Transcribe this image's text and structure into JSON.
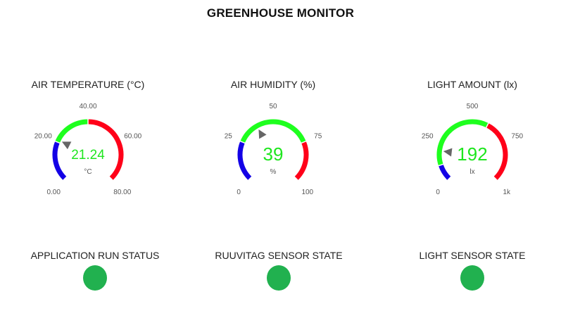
{
  "page": {
    "title": "GREENHOUSE MONITOR"
  },
  "colors": {
    "low": "#1300e6",
    "ok": "#1eff1e",
    "high": "#ff0019",
    "track": "#e6e6e6",
    "value": "#1ee61e",
    "needle": "#666666",
    "status_on": "#21b14f"
  },
  "gauges": [
    {
      "title": "AIR TEMPERATURE (°C)",
      "value_text": "21.24",
      "value": 21.24,
      "unit": "°C",
      "min": 0,
      "max": 80,
      "ticks": [
        "0.00",
        "20.00",
        "40.00",
        "60.00",
        "80.00"
      ],
      "segments": [
        {
          "from": 0,
          "to": 20,
          "color": "low"
        },
        {
          "from": 20,
          "to": 40,
          "color": "ok"
        },
        {
          "from": 40,
          "to": 80,
          "color": "high"
        }
      ]
    },
    {
      "title": "AIR HUMIDITY (%)",
      "value_text": "39",
      "value": 39,
      "unit": "%",
      "min": 0,
      "max": 100,
      "ticks": [
        "0",
        "25",
        "50",
        "75",
        "100"
      ],
      "segments": [
        {
          "from": 0,
          "to": 25,
          "color": "low"
        },
        {
          "from": 25,
          "to": 75,
          "color": "ok"
        },
        {
          "from": 75,
          "to": 100,
          "color": "high"
        }
      ]
    },
    {
      "title": "LIGHT AMOUNT (lx)",
      "value_text": "192",
      "value": 192,
      "unit": "lx",
      "min": 0,
      "max": 1000,
      "ticks": [
        "0",
        "250",
        "500",
        "750",
        "1k"
      ],
      "segments": [
        {
          "from": 0,
          "to": 100,
          "color": "low"
        },
        {
          "from": 100,
          "to": 600,
          "color": "ok"
        },
        {
          "from": 600,
          "to": 1000,
          "color": "high"
        }
      ]
    }
  ],
  "statuses": [
    {
      "title": "APPLICATION RUN STATUS",
      "state": "on"
    },
    {
      "title": "RUUVITAG SENSOR STATE",
      "state": "on"
    },
    {
      "title": "LIGHT SENSOR STATE",
      "state": "on"
    }
  ]
}
